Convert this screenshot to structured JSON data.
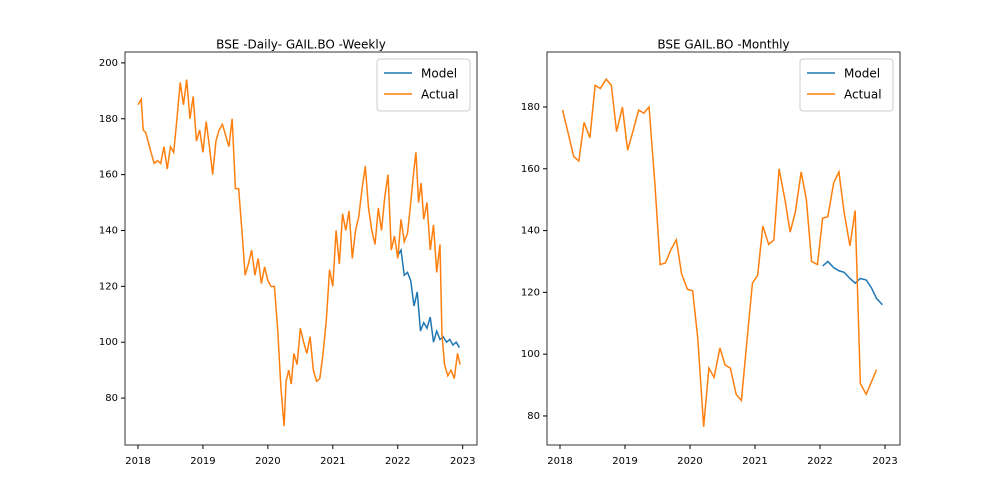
{
  "chart_data": [
    {
      "type": "line",
      "title": "BSE -Daily- GAIL.BO -Weekly",
      "xlim": [
        2017.8,
        2023.22
      ],
      "xticks": [
        2018,
        2019,
        2020,
        2021,
        2022,
        2023
      ],
      "ylim": [
        63.2,
        203.9
      ],
      "yticks": [
        80,
        100,
        120,
        140,
        160,
        180,
        200
      ],
      "legend": "upper right",
      "series": [
        {
          "name": "Model",
          "color": "#1f77b4",
          "x": [
            2022.0,
            2022.05,
            2022.1,
            2022.15,
            2022.2,
            2022.25,
            2022.3,
            2022.35,
            2022.4,
            2022.45,
            2022.5,
            2022.55,
            2022.6,
            2022.65,
            2022.7,
            2022.75,
            2022.8,
            2022.85,
            2022.9,
            2022.95
          ],
          "values": [
            131,
            133,
            124,
            125,
            122,
            113,
            118,
            104,
            107,
            105,
            109,
            100,
            104,
            101,
            102,
            100,
            101,
            99,
            100,
            98
          ]
        },
        {
          "name": "Actual",
          "color": "#ff7f0e",
          "x": [
            2018.0,
            2018.05,
            2018.08,
            2018.12,
            2018.2,
            2018.25,
            2018.3,
            2018.35,
            2018.4,
            2018.45,
            2018.5,
            2018.55,
            2018.6,
            2018.65,
            2018.7,
            2018.75,
            2018.8,
            2018.85,
            2018.9,
            2018.95,
            2019.0,
            2019.05,
            2019.1,
            2019.15,
            2019.2,
            2019.25,
            2019.3,
            2019.35,
            2019.4,
            2019.45,
            2019.5,
            2019.55,
            2019.6,
            2019.65,
            2019.7,
            2019.75,
            2019.8,
            2019.85,
            2019.9,
            2019.95,
            2020.0,
            2020.05,
            2020.1,
            2020.15,
            2020.2,
            2020.25,
            2020.28,
            2020.32,
            2020.36,
            2020.4,
            2020.45,
            2020.5,
            2020.55,
            2020.6,
            2020.65,
            2020.7,
            2020.75,
            2020.8,
            2020.85,
            2020.9,
            2020.95,
            2021.0,
            2021.05,
            2021.1,
            2021.15,
            2021.2,
            2021.25,
            2021.3,
            2021.35,
            2021.4,
            2021.45,
            2021.5,
            2021.55,
            2021.6,
            2021.65,
            2021.7,
            2021.75,
            2021.8,
            2021.85,
            2021.9,
            2021.95,
            2022.0,
            2022.05,
            2022.1,
            2022.15,
            2022.2,
            2022.25,
            2022.28,
            2022.32,
            2022.36,
            2022.4,
            2022.45,
            2022.5,
            2022.55,
            2022.6,
            2022.65,
            2022.68,
            2022.72,
            2022.77,
            2022.82,
            2022.87,
            2022.92,
            2022.96
          ],
          "values": [
            185,
            187,
            176,
            175,
            168,
            164,
            165,
            164,
            170,
            162,
            170,
            168,
            180,
            193,
            185,
            194,
            180,
            188,
            172,
            176,
            168,
            179,
            170,
            160,
            172,
            176,
            178,
            174,
            170,
            180,
            155,
            155,
            140,
            124,
            128,
            133,
            124,
            130,
            121,
            127,
            122,
            120,
            120,
            105,
            84,
            70,
            86,
            90,
            85,
            96,
            92,
            105,
            100,
            96,
            102,
            90,
            86,
            87,
            96,
            108,
            126,
            120,
            140,
            128,
            146,
            140,
            147,
            130,
            140,
            145,
            155,
            163,
            148,
            140,
            135,
            148,
            140,
            152,
            160,
            133,
            138,
            130,
            144,
            136,
            139,
            150,
            162,
            168,
            150,
            157,
            144,
            150,
            133,
            142,
            125,
            135,
            103,
            92,
            88,
            90,
            87,
            96,
            92
          ]
        }
      ]
    },
    {
      "type": "line",
      "title": "BSE GAIL.BO -Monthly",
      "xlim": [
        2017.8,
        2023.23
      ],
      "xticks": [
        2018,
        2019,
        2020,
        2021,
        2022,
        2023
      ],
      "ylim": [
        70.6,
        197.8
      ],
      "yticks": [
        80,
        100,
        120,
        140,
        160,
        180
      ],
      "legend": "upper right",
      "series": [
        {
          "name": "Model",
          "color": "#1f77b4",
          "x": [
            2022.04,
            2022.12,
            2022.21,
            2022.29,
            2022.37,
            2022.46,
            2022.54,
            2022.62,
            2022.71,
            2022.79,
            2022.87,
            2022.96
          ],
          "values": [
            128.5,
            130,
            128,
            127,
            126.5,
            124.5,
            123,
            124.5,
            124,
            121.5,
            118,
            116
          ]
        },
        {
          "name": "Actual",
          "color": "#ff7f0e",
          "x": [
            2018.04,
            2018.12,
            2018.21,
            2018.29,
            2018.37,
            2018.46,
            2018.54,
            2018.62,
            2018.71,
            2018.79,
            2018.87,
            2018.96,
            2019.04,
            2019.12,
            2019.21,
            2019.29,
            2019.37,
            2019.46,
            2019.54,
            2019.62,
            2019.71,
            2019.79,
            2019.87,
            2019.96,
            2020.04,
            2020.12,
            2020.21,
            2020.29,
            2020.37,
            2020.46,
            2020.54,
            2020.62,
            2020.71,
            2020.79,
            2020.87,
            2020.96,
            2021.04,
            2021.12,
            2021.21,
            2021.29,
            2021.37,
            2021.46,
            2021.54,
            2021.62,
            2021.71,
            2021.79,
            2021.87,
            2021.96,
            2022.04,
            2022.12,
            2022.21,
            2022.29,
            2022.37,
            2022.46,
            2022.54,
            2022.62,
            2022.71,
            2022.79,
            2022.87
          ],
          "values": [
            179,
            172,
            164,
            162.5,
            175,
            170,
            187,
            186,
            189,
            187,
            172,
            180,
            166,
            172,
            179,
            178,
            180,
            155,
            129,
            129.5,
            134,
            137,
            126,
            121,
            120.5,
            105,
            76.5,
            95.5,
            92.5,
            102,
            96.5,
            95.5,
            87,
            85,
            103,
            123,
            125.5,
            141.5,
            135.5,
            137,
            160,
            150,
            139.5,
            146,
            159,
            150,
            130,
            129,
            144,
            144.5,
            155.5,
            159,
            146,
            135,
            146.5,
            90.5,
            87,
            91,
            95
          ]
        }
      ]
    }
  ]
}
